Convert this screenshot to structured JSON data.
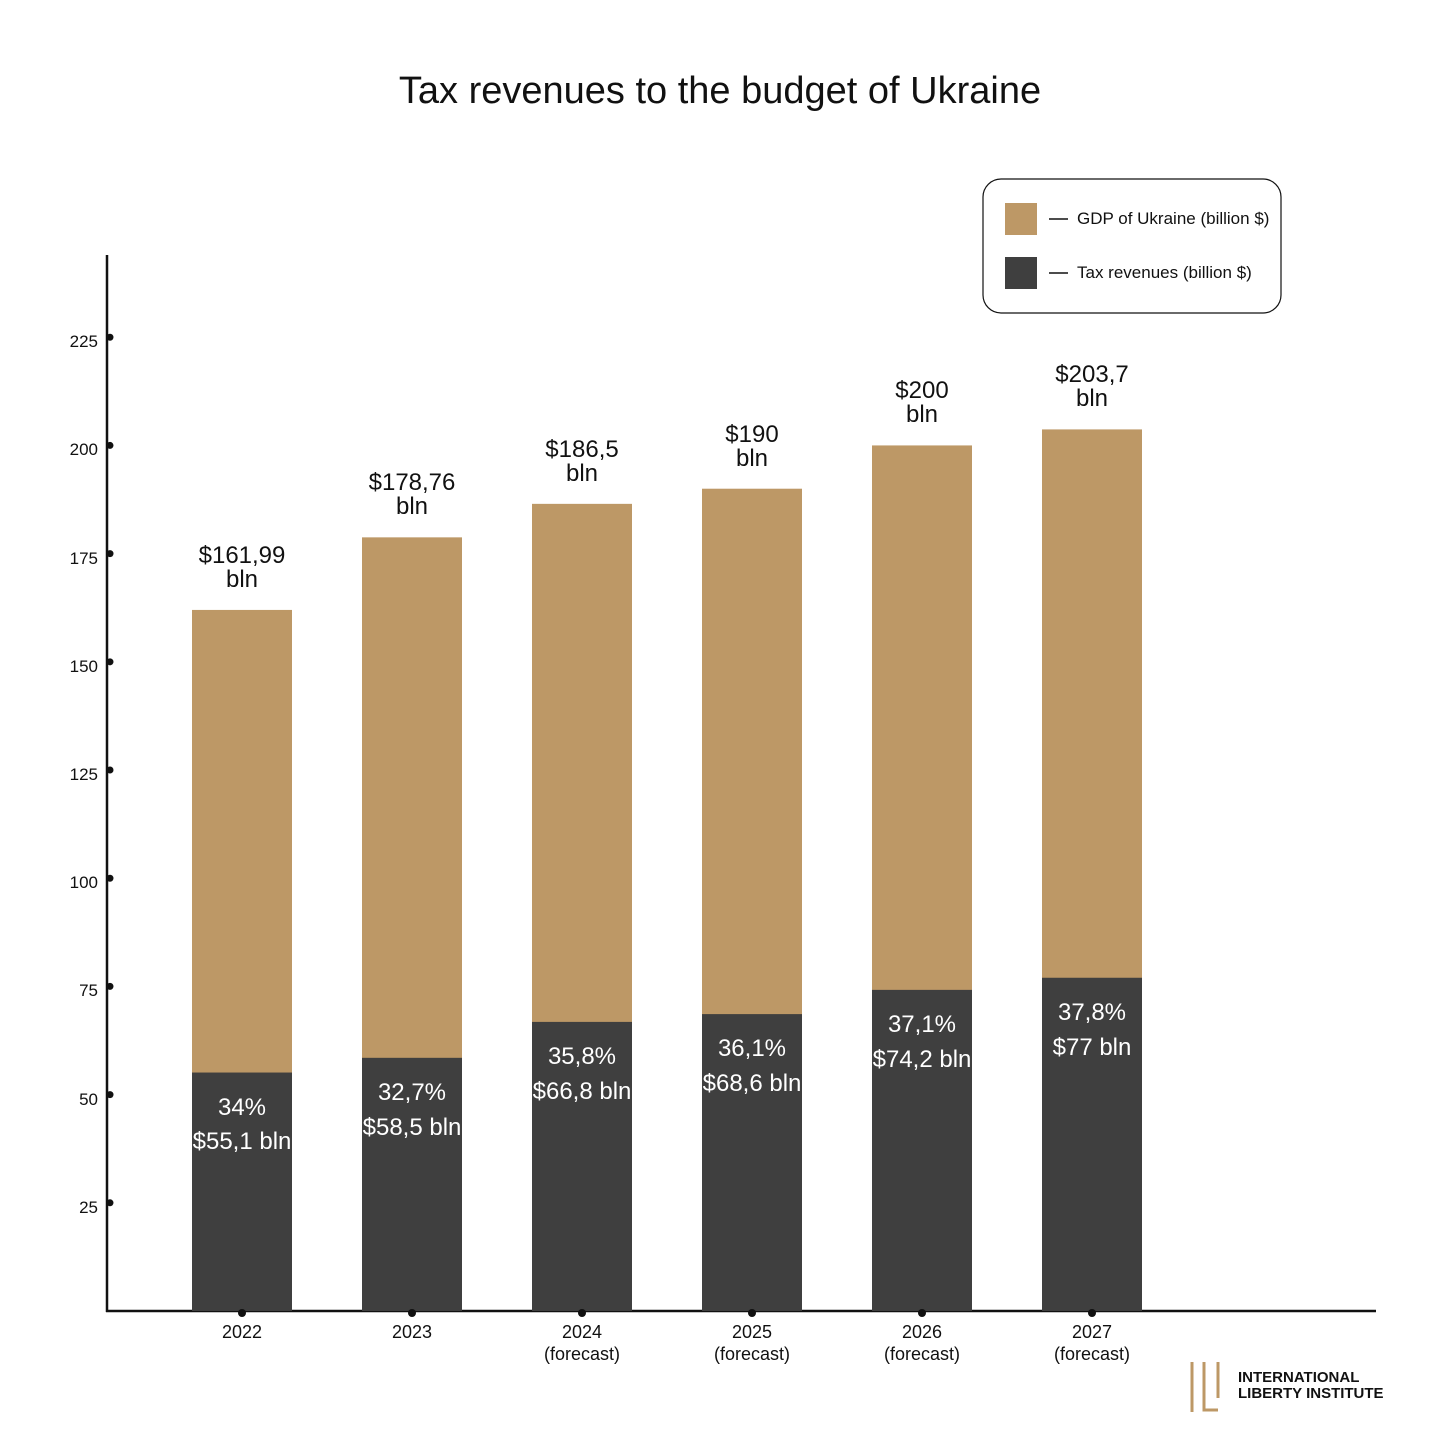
{
  "chart_data": {
    "type": "bar",
    "title": "Tax revenues to the budget of Ukraine",
    "categories": [
      "2022",
      "2023",
      "2024\n(forecast)",
      "2025\n(forecast)",
      "2026\n(forecast)",
      "2027\n(forecast)"
    ],
    "series": [
      {
        "name": "GDP of Ukraine (billion $)",
        "color": "#bd9866",
        "values": [
          161.99,
          178.76,
          186.5,
          190,
          200,
          203.7
        ],
        "value_labels": [
          "$161,99\nbln",
          "$178,76\nbln",
          "$186,5\nbln",
          "$190\nbln",
          "$200\nbln",
          "$203,7\nbln"
        ]
      },
      {
        "name": "Tax revenues (billion $)",
        "color": "#3f3f3f",
        "values": [
          55.1,
          58.5,
          66.8,
          68.6,
          74.2,
          77
        ],
        "value_labels": [
          "34%\n$55,1 bln",
          "32,7%\n$58,5 bln",
          "35,8%\n$66,8 bln",
          "36,1%\n$68,6 bln",
          "37,1%\n$74,2 bln",
          "37,8%\n$77 bln"
        ]
      }
    ],
    "ylim": [
      0,
      244
    ],
    "yticks": [
      25,
      50,
      75,
      100,
      125,
      150,
      175,
      200,
      225
    ],
    "overlap": true,
    "legend": "top-right",
    "logo": "INTERNATIONAL\nLIBERTY INSTITUTE"
  }
}
